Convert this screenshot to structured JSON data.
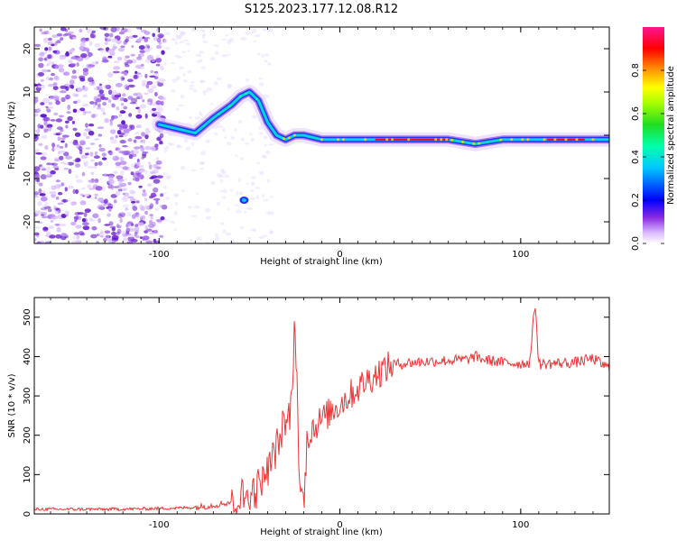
{
  "title": "S125.2023.177.12.08.R12",
  "chart_data": [
    {
      "type": "heatmap",
      "xlabel": "Height of straight line (km)",
      "ylabel": "Frequency (Hz)",
      "xlim": [
        -169,
        149
      ],
      "ylim": [
        -25,
        25
      ],
      "xticks": [
        -100,
        0,
        100
      ],
      "yticks": [
        -20,
        -10,
        0,
        10,
        20
      ],
      "colorbar": {
        "label": "Normalized spectral amplitude",
        "range": [
          0,
          1
        ],
        "ticks": [
          0.0,
          0.2,
          0.4,
          0.6,
          0.8
        ],
        "tick_labels": [
          "0.0",
          "0.2",
          "0.4",
          "0.6",
          "0.8"
        ]
      },
      "ridge": {
        "x": [
          -100,
          -90,
          -80,
          -70,
          -60,
          -55,
          -50,
          -45,
          -40,
          -35,
          -30,
          -25,
          -20,
          -10,
          0,
          20,
          40,
          60,
          75,
          90,
          100,
          120,
          140,
          149
        ],
        "frequency": [
          2.5,
          1.5,
          0.5,
          4,
          7,
          9,
          10,
          8,
          3,
          0,
          -1,
          0,
          0,
          -1,
          -1,
          -1,
          -1,
          -1,
          -2,
          -1,
          -1,
          -1,
          -1,
          -1
        ]
      }
    },
    {
      "type": "line",
      "xlabel": "Height of straight line (km)",
      "ylabel": "SNR (10 * v/v)",
      "xlim": [
        -169,
        149
      ],
      "ylim": [
        0,
        550
      ],
      "xticks": [
        -100,
        0,
        100
      ],
      "yticks": [
        0,
        100,
        200,
        300,
        400,
        500
      ],
      "color": "#ee3333",
      "series": [
        {
          "x": [
            -169,
            -150,
            -130,
            -110,
            -90,
            -80,
            -70,
            -60,
            -50,
            -45,
            -40,
            -35,
            -30,
            -27,
            -25,
            -22,
            -20,
            -18,
            -15,
            -10,
            -5,
            0,
            5,
            10,
            15,
            20,
            25,
            30,
            40,
            50,
            60,
            70,
            75,
            80,
            90,
            100,
            105,
            108,
            110,
            115,
            120,
            130,
            140,
            145,
            149
          ],
          "y": [
            12,
            12,
            12,
            13,
            15,
            17,
            22,
            30,
            50,
            70,
            110,
            170,
            230,
            260,
            500,
            60,
            20,
            200,
            220,
            240,
            260,
            280,
            300,
            320,
            340,
            355,
            370,
            380,
            385,
            388,
            390,
            392,
            400,
            392,
            385,
            382,
            385,
            540,
            380,
            382,
            383,
            385,
            395,
            380,
            370
          ]
        }
      ]
    }
  ]
}
